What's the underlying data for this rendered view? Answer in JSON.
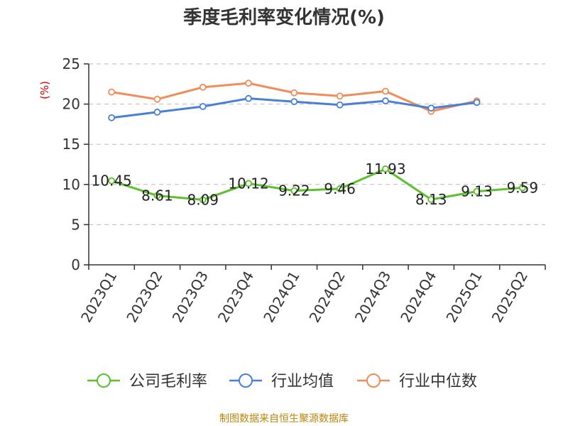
{
  "title": "季度毛利率变化情况(%)",
  "source": "制图数据来自恒生聚源数据库",
  "chart_data": {
    "type": "line",
    "title": "季度毛利率变化情况(%)",
    "ylabel": "(%)",
    "xlabel": "",
    "ylim": [
      0,
      25
    ],
    "yticks": [
      0,
      5,
      10,
      15,
      20,
      25
    ],
    "grid": true,
    "legend_position": "bottom",
    "categories": [
      "2023Q1",
      "2023Q2",
      "2023Q3",
      "2023Q4",
      "2024Q1",
      "2024Q2",
      "2024Q3",
      "2024Q4",
      "2025Q1",
      "2025Q2"
    ],
    "series": [
      {
        "name": "公司毛利率",
        "color": "#5cc02c",
        "values": [
          10.45,
          8.61,
          8.09,
          10.12,
          9.22,
          9.46,
          11.93,
          8.13,
          9.13,
          9.59
        ],
        "labels": [
          "10.45",
          "8.61",
          "8.09",
          "10.12",
          "9.22",
          "9.46",
          "11.93",
          "8.13",
          "9.13",
          "9.59"
        ]
      },
      {
        "name": "行业均值",
        "color": "#4a7fd8",
        "values": [
          18.3,
          19.0,
          19.7,
          20.7,
          20.3,
          19.9,
          20.4,
          19.5,
          20.2,
          null
        ]
      },
      {
        "name": "行业中位数",
        "color": "#f08c5a",
        "values": [
          21.5,
          20.6,
          22.1,
          22.6,
          21.4,
          21.0,
          21.6,
          19.1,
          20.4,
          null
        ]
      }
    ]
  }
}
